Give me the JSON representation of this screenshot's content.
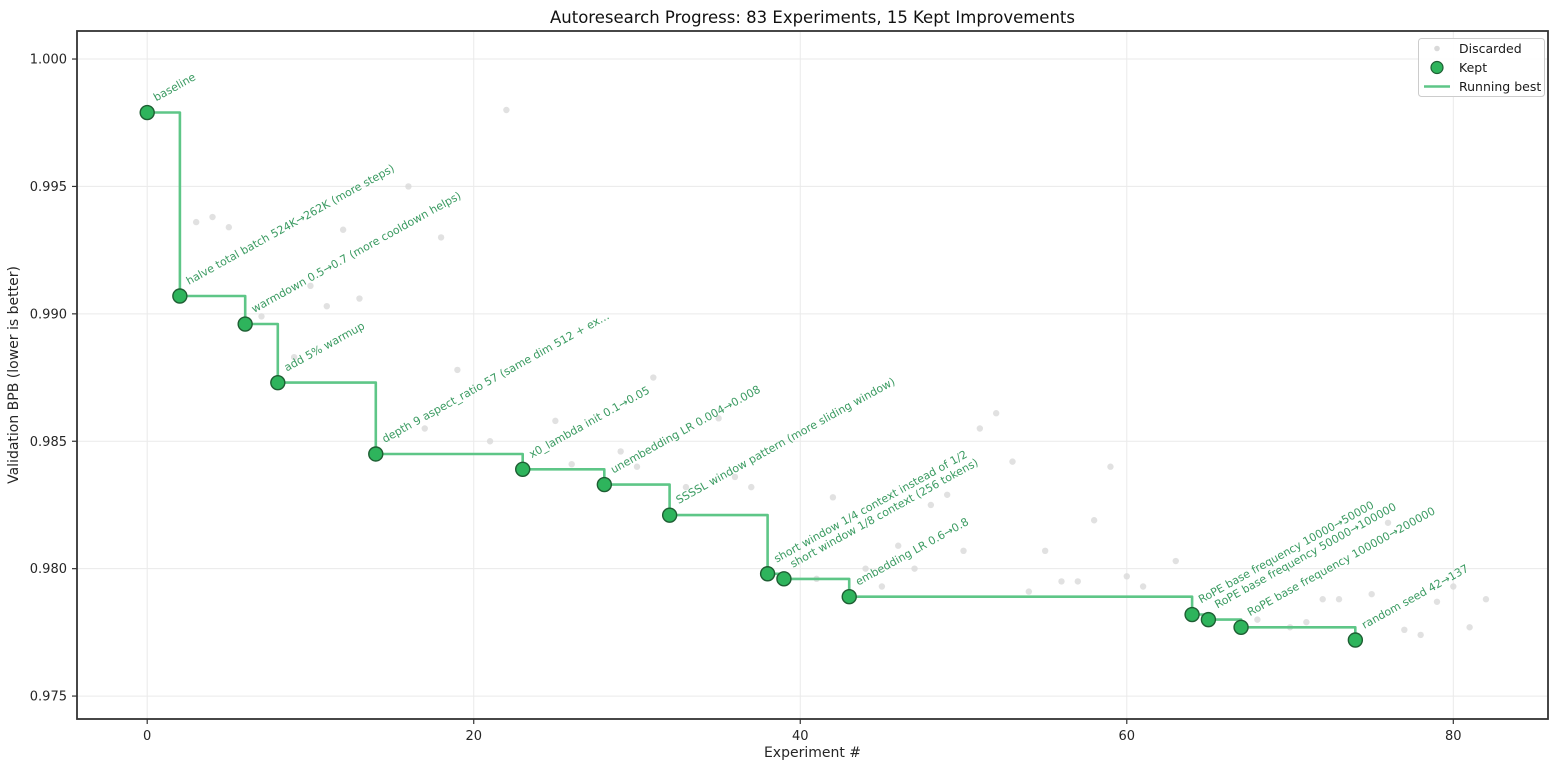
{
  "page": {
    "title": "Autoresearch Progress: 83 Experiments, 15 Kept Improvements"
  },
  "chart_data": {
    "type": "scatter",
    "title": "Autoresearch Progress: 83 Experiments, 15 Kept Improvements",
    "xlabel": "Experiment #",
    "ylabel": "Validation BPB (lower is better)",
    "xlim": [
      -4.3,
      85.8
    ],
    "ylim": [
      0.9741,
      1.0011
    ],
    "grid": true,
    "x_ticks": [
      {
        "value": 0,
        "label": "0"
      },
      {
        "value": 20,
        "label": "20"
      },
      {
        "value": 40,
        "label": "40"
      },
      {
        "value": 60,
        "label": "60"
      },
      {
        "value": 80,
        "label": "80"
      }
    ],
    "y_ticks": [
      {
        "value": 1.0,
        "label": "1.000"
      },
      {
        "value": 0.995,
        "label": "0.995"
      },
      {
        "value": 0.99,
        "label": "0.990"
      },
      {
        "value": 0.985,
        "label": "0.985"
      },
      {
        "value": 0.98,
        "label": "0.980"
      },
      {
        "value": 0.975,
        "label": "0.975"
      }
    ],
    "legend": {
      "position": "upper right",
      "entries": [
        {
          "label": "Discarded",
          "marker": "dot-small"
        },
        {
          "label": "Kept",
          "marker": "dot-large"
        },
        {
          "label": "Running best",
          "marker": "line"
        }
      ]
    },
    "series": [
      {
        "name": "Kept",
        "type": "scatter",
        "points_format": "[experiment, bpb, annotation]",
        "points": [
          {
            "experiment": 0,
            "bpb": 0.9979,
            "annotation": "baseline"
          },
          {
            "experiment": 2,
            "bpb": 0.9907,
            "annotation": "halve total batch 524K→262K (more steps)"
          },
          {
            "experiment": 6,
            "bpb": 0.9896,
            "annotation": "warmdown 0.5→0.7 (more cooldown helps)"
          },
          {
            "experiment": 8,
            "bpb": 0.9873,
            "annotation": "add 5% warmup"
          },
          {
            "experiment": 14,
            "bpb": 0.9845,
            "annotation": "depth 9 aspect_ratio 57 (same dim 512 + ex…"
          },
          {
            "experiment": 23,
            "bpb": 0.9839,
            "annotation": "x0_lambda init 0.1→0.05"
          },
          {
            "experiment": 28,
            "bpb": 0.9833,
            "annotation": "unembedding LR 0.004→0.008"
          },
          {
            "experiment": 32,
            "bpb": 0.9821,
            "annotation": "SSSSL window pattern (more sliding window)"
          },
          {
            "experiment": 38,
            "bpb": 0.9798,
            "annotation": "short window 1/4 context instead of 1/2"
          },
          {
            "experiment": 39,
            "bpb": 0.9796,
            "annotation": "short window 1/8 context (256 tokens)"
          },
          {
            "experiment": 43,
            "bpb": 0.9789,
            "annotation": "embedding LR 0.6→0.8"
          },
          {
            "experiment": 64,
            "bpb": 0.9782,
            "annotation": "RoPE base frequency 10000→50000"
          },
          {
            "experiment": 65,
            "bpb": 0.978,
            "annotation": "RoPE base frequency 50000→100000"
          },
          {
            "experiment": 67,
            "bpb": 0.9777,
            "annotation": "RoPE base frequency 100000→200000"
          },
          {
            "experiment": 74,
            "bpb": 0.9772,
            "annotation": "random seed 42→137"
          }
        ]
      },
      {
        "name": "Discarded",
        "type": "scatter",
        "points_format": "[experiment, bpb]",
        "points": [
          [
            3,
            0.9936
          ],
          [
            4,
            0.9938
          ],
          [
            5,
            0.9934
          ],
          [
            7,
            0.9899
          ],
          [
            9,
            0.9883
          ],
          [
            10,
            0.9911
          ],
          [
            11,
            0.9903
          ],
          [
            12,
            0.9933
          ],
          [
            13,
            0.9906
          ],
          [
            16,
            0.995
          ],
          [
            17,
            0.9855
          ],
          [
            18,
            0.993
          ],
          [
            19,
            0.9878
          ],
          [
            21,
            0.985
          ],
          [
            22,
            0.998
          ],
          [
            25,
            0.9858
          ],
          [
            26,
            0.9841
          ],
          [
            29,
            0.9846
          ],
          [
            30,
            0.984
          ],
          [
            31,
            0.9875
          ],
          [
            33,
            0.9832
          ],
          [
            35,
            0.9859
          ],
          [
            36,
            0.9836
          ],
          [
            37,
            0.9832
          ],
          [
            41,
            0.9796
          ],
          [
            42,
            0.9828
          ],
          [
            44,
            0.98
          ],
          [
            45,
            0.9793
          ],
          [
            46,
            0.9809
          ],
          [
            47,
            0.98
          ],
          [
            48,
            0.9825
          ],
          [
            49,
            0.9829
          ],
          [
            50,
            0.9807
          ],
          [
            51,
            0.9855
          ],
          [
            52,
            0.9861
          ],
          [
            53,
            0.9842
          ],
          [
            54,
            0.9791
          ],
          [
            55,
            0.9807
          ],
          [
            56,
            0.9795
          ],
          [
            57,
            0.9795
          ],
          [
            58,
            0.9819
          ],
          [
            59,
            0.984
          ],
          [
            60,
            0.9797
          ],
          [
            61,
            0.9793
          ],
          [
            63,
            0.9803
          ],
          [
            68,
            0.978
          ],
          [
            70,
            0.9777
          ],
          [
            71,
            0.9779
          ],
          [
            72,
            0.9788
          ],
          [
            73,
            0.9788
          ],
          [
            75,
            0.979
          ],
          [
            76,
            0.9818
          ],
          [
            77,
            0.9776
          ],
          [
            78,
            0.9774
          ],
          [
            79,
            0.9787
          ],
          [
            80,
            0.9793
          ],
          [
            81,
            0.9777
          ],
          [
            82,
            0.9788
          ]
        ]
      },
      {
        "name": "Running best",
        "type": "step-line",
        "derived_from": "Kept"
      }
    ],
    "colors": {
      "kept_fill": "#2eb45c",
      "kept_edge": "#1e5e33",
      "best_line": "#5ec687",
      "discarded": "#d9d9d9",
      "annotation": "#3b9b62",
      "grid": "#eaeaea",
      "spine": "#333333",
      "tick_text": "#262626",
      "title_text": "#111111",
      "background": "#ffffff"
    }
  }
}
